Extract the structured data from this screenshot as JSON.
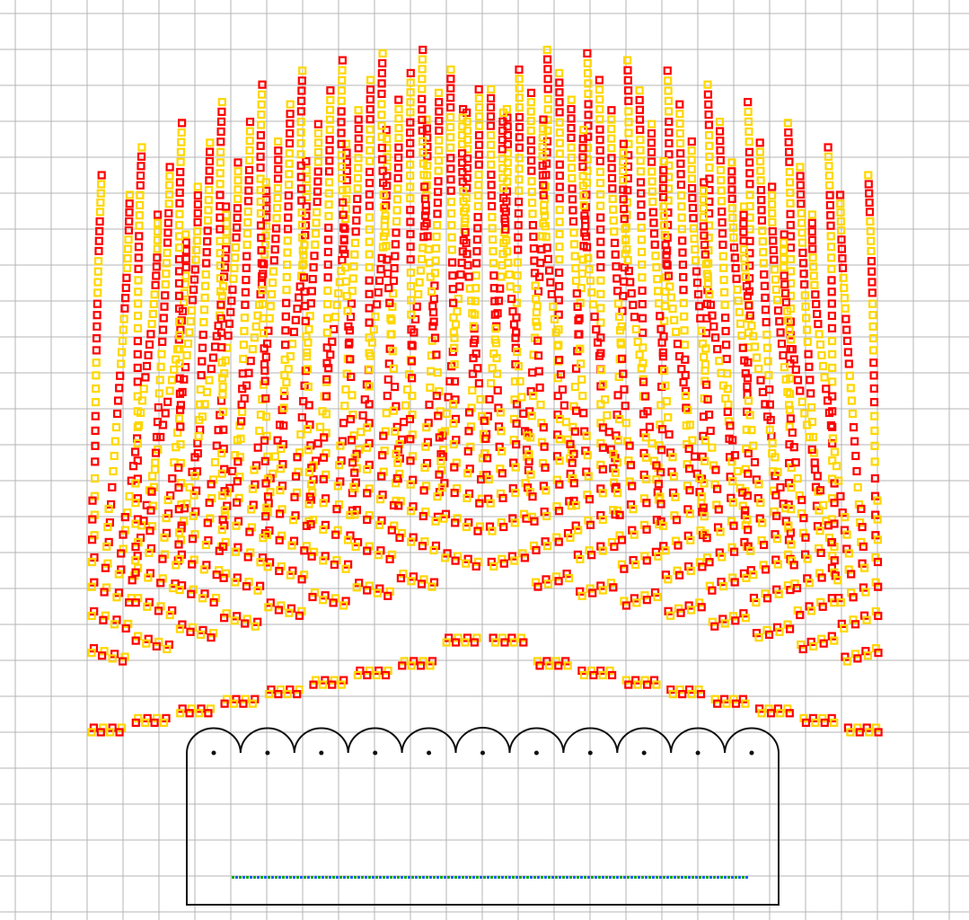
{
  "colors": {
    "background": "#ffffff",
    "grid": "#b4b4b4",
    "particle_primary": "#ff0000",
    "particle_secondary": "#ffd700",
    "outline": "#111111",
    "emitter_segment_a": "#00aa00",
    "emitter_segment_b": "#1e5bff"
  },
  "grid": {
    "visible": true
  },
  "nozzles": {
    "count": 11
  },
  "jets": {
    "count": 18,
    "rings_per_arc": 4,
    "shape": "hollow-square"
  }
}
